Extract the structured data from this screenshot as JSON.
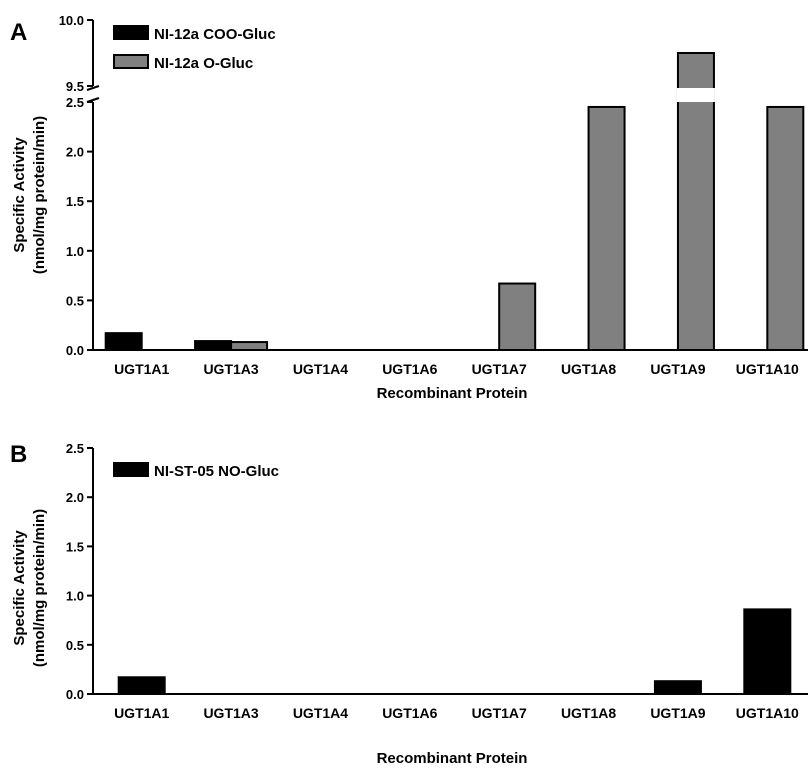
{
  "chart_data": [
    {
      "panel": "A",
      "type": "bar",
      "xlabel": "Recombinant Protein",
      "ylabel": [
        "Specific Activity",
        "(nmol/mg protein/min)"
      ],
      "categories": [
        "UGT1A1",
        "UGT1A3",
        "UGT1A4",
        "UGT1A6",
        "UGT1A7",
        "UGT1A8",
        "UGT1A9",
        "UGT1A10"
      ],
      "series": [
        {
          "name": "NI-12a COO-Gluc",
          "color": "#000000",
          "values": [
            0.17,
            0.09,
            0,
            0,
            0,
            0,
            0,
            0
          ]
        },
        {
          "name": "NI-12a O-Gluc",
          "color": "#808080",
          "values": [
            0,
            0.08,
            0,
            0,
            0.67,
            2.45,
            9.75,
            2.45
          ]
        }
      ],
      "ylim": [
        0,
        10.0
      ],
      "axis_break": {
        "lower_segment": [
          0,
          2.5
        ],
        "upper_segment": [
          9.5,
          10.0
        ]
      },
      "yticks_lower": [
        "0.0",
        "0.5",
        "1.0",
        "1.5",
        "2.0",
        "2.5"
      ],
      "yticks_upper": [
        "9.5",
        "10.0"
      ],
      "legend": "top-left",
      "grid": false
    },
    {
      "panel": "B",
      "type": "bar",
      "xlabel": "Recombinant Protein",
      "ylabel": [
        "Specific Activity",
        "(nmol/mg protein/min)"
      ],
      "categories": [
        "UGT1A1",
        "UGT1A3",
        "UGT1A4",
        "UGT1A6",
        "UGT1A7",
        "UGT1A8",
        "UGT1A9",
        "UGT1A10"
      ],
      "series": [
        {
          "name": "NI-ST-05 NO-Gluc",
          "color": "#000000",
          "values": [
            0.17,
            0,
            0,
            0,
            0,
            0,
            0.13,
            0.86
          ]
        }
      ],
      "ylim": [
        0,
        2.5
      ],
      "yticks": [
        "0.0",
        "0.5",
        "1.0",
        "1.5",
        "2.0",
        "2.5"
      ],
      "legend": "top-left",
      "grid": false
    }
  ]
}
